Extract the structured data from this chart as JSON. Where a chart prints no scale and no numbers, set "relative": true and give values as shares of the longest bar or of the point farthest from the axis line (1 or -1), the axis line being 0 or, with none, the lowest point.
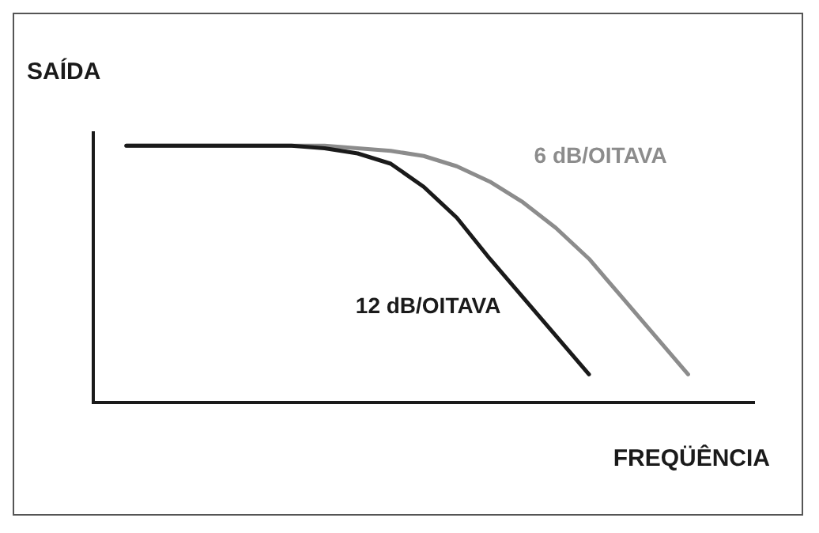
{
  "chart_data": {
    "type": "line",
    "relative": true,
    "xlabel": "FREQÜÊNCIA",
    "ylabel": "SAÍDA",
    "legend": false,
    "marker": "none",
    "categories": [
      null,
      null,
      null,
      null,
      null,
      null,
      null,
      null,
      null,
      null,
      null,
      null,
      null,
      null,
      null,
      null,
      null,
      null,
      null,
      null,
      null
    ],
    "series": [
      {
        "name": "12 dB/OITAVA",
        "color": "#1a1a1a",
        "values": [
          null,
          1,
          1,
          1,
          1,
          1,
          1,
          0.99,
          0.97,
          0.93,
          0.84,
          0.72,
          0.56,
          0.41,
          0.26,
          0.11,
          null,
          null,
          null,
          null,
          null
        ]
      },
      {
        "name": "6 dB/OITAVA",
        "color": "#8c8c8c",
        "values": [
          null,
          1,
          1,
          1,
          1,
          1,
          1,
          1,
          0.99,
          0.98,
          0.96,
          0.92,
          0.86,
          0.78,
          0.68,
          0.56,
          0.41,
          0.26,
          0.11,
          null,
          null
        ]
      }
    ]
  }
}
